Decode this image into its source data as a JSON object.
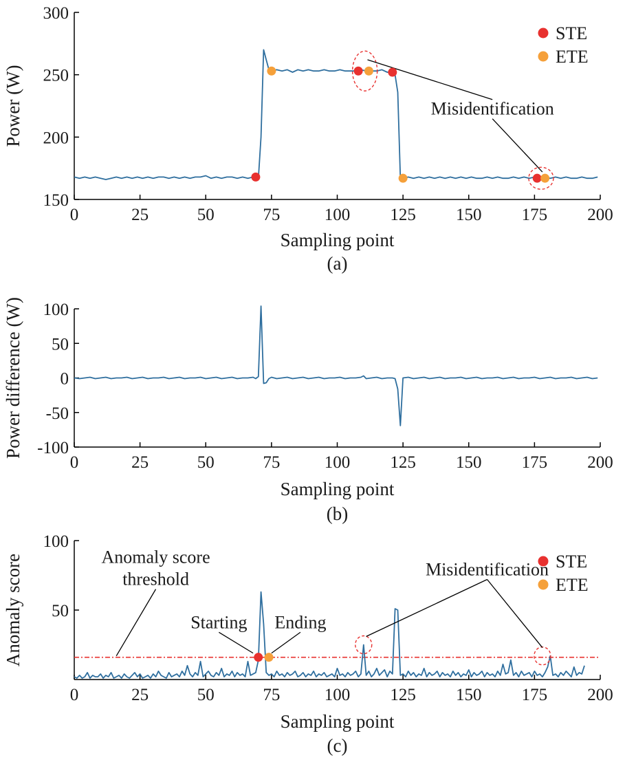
{
  "colors": {
    "line": "#2e6e9e",
    "ste": "#e8312f",
    "ete": "#f5a03a",
    "threshold": "#e8312f",
    "highlight": "#e8312f",
    "axis": "#000000"
  },
  "chart_data": [
    {
      "type": "line",
      "caption": "(a)",
      "xlabel": "Sampling point",
      "ylabel": "Power (W)",
      "xlim": [
        0,
        200
      ],
      "ylim": [
        150,
        300
      ],
      "xticks": [
        0,
        25,
        50,
        75,
        100,
        125,
        150,
        175,
        200
      ],
      "yticks": [
        150,
        200,
        250,
        300
      ],
      "grid": false,
      "legend_position": "top-right",
      "legend": [
        {
          "label": "STE",
          "color": "#e8312f"
        },
        {
          "label": "ETE",
          "color": "#f5a03a"
        }
      ],
      "series": [
        {
          "x": [
            0,
            2,
            4,
            6,
            8,
            10,
            12,
            14,
            16,
            18,
            20,
            22,
            24,
            26,
            28,
            30,
            32,
            34,
            36,
            38,
            40,
            42,
            44,
            46,
            48,
            50,
            52,
            54,
            56,
            58,
            60,
            62,
            64,
            66,
            68,
            69,
            70,
            71,
            72,
            73,
            74,
            75,
            77,
            79,
            81,
            83,
            85,
            87,
            89,
            91,
            93,
            95,
            97,
            99,
            101,
            103,
            105,
            107,
            109,
            111,
            113,
            115,
            117,
            119,
            121,
            122,
            123,
            124,
            125,
            127,
            129,
            131,
            133,
            135,
            137,
            139,
            141,
            143,
            145,
            147,
            149,
            151,
            153,
            155,
            157,
            159,
            161,
            163,
            165,
            167,
            169,
            171,
            173,
            175,
            177,
            179,
            181,
            183,
            185,
            187,
            189,
            191,
            193,
            195,
            197,
            199
          ],
          "y": [
            168,
            167,
            168,
            167,
            168,
            167,
            166,
            167,
            168,
            167,
            168,
            167,
            168,
            167,
            168,
            167,
            168,
            168,
            167,
            168,
            167,
            168,
            167,
            168,
            168,
            169,
            167,
            168,
            167,
            168,
            168,
            167,
            168,
            167,
            168,
            167,
            167,
            200,
            270,
            262,
            254,
            253,
            254,
            253,
            254,
            252,
            254,
            253,
            254,
            253,
            253,
            254,
            253,
            253,
            254,
            253,
            253,
            253,
            254,
            253,
            253,
            253,
            254,
            252,
            252,
            250,
            236,
            167,
            167,
            168,
            167,
            168,
            167,
            168,
            167,
            168,
            167,
            168,
            167,
            168,
            167,
            168,
            167,
            167,
            168,
            167,
            168,
            167,
            167,
            168,
            167,
            168,
            167,
            168,
            167,
            168,
            167,
            168,
            167,
            168,
            167,
            167,
            168,
            167,
            167,
            168
          ]
        }
      ],
      "markers": [
        {
          "type": "STE",
          "x": 69,
          "y": 168
        },
        {
          "type": "ETE",
          "x": 75,
          "y": 253
        },
        {
          "type": "STE",
          "x": 108,
          "y": 253
        },
        {
          "type": "ETE",
          "x": 112,
          "y": 253
        },
        {
          "type": "STE",
          "x": 121,
          "y": 252
        },
        {
          "type": "ETE",
          "x": 125,
          "y": 167
        },
        {
          "type": "STE",
          "x": 176,
          "y": 167
        },
        {
          "type": "ETE",
          "x": 179,
          "y": 167
        }
      ],
      "highlights": [
        {
          "x": 110.5,
          "y": 253
        },
        {
          "x": 177.5,
          "y": 167
        }
      ],
      "annotations": [
        {
          "text": "Misidentification",
          "x": 159,
          "y": 218,
          "targets": [
            {
              "x": 111.5,
              "y": 262
            },
            {
              "x": 178,
              "y": 172
            }
          ]
        }
      ]
    },
    {
      "type": "line",
      "caption": "(b)",
      "xlabel": "Sampling point",
      "ylabel": "Power difference (W)",
      "xlim": [
        0,
        200
      ],
      "ylim": [
        -100,
        100
      ],
      "xticks": [
        0,
        25,
        50,
        75,
        100,
        125,
        150,
        175,
        200
      ],
      "yticks": [
        -100,
        -50,
        0,
        50,
        100
      ],
      "grid": false,
      "series": [
        {
          "x": [
            0,
            2,
            4,
            6,
            8,
            10,
            12,
            14,
            16,
            18,
            20,
            22,
            24,
            26,
            28,
            30,
            32,
            34,
            36,
            38,
            40,
            42,
            44,
            46,
            48,
            50,
            52,
            54,
            56,
            58,
            60,
            62,
            64,
            66,
            68,
            69,
            70,
            71,
            72,
            73,
            74,
            75,
            77,
            79,
            81,
            83,
            85,
            87,
            89,
            91,
            93,
            95,
            97,
            99,
            101,
            103,
            105,
            107,
            109,
            110,
            111,
            113,
            115,
            117,
            119,
            121,
            122,
            123,
            124,
            125,
            127,
            129,
            131,
            133,
            135,
            137,
            139,
            141,
            143,
            145,
            147,
            149,
            151,
            153,
            155,
            157,
            159,
            161,
            163,
            165,
            167,
            169,
            171,
            173,
            175,
            177,
            179,
            181,
            183,
            185,
            187,
            189,
            191,
            193,
            195,
            197,
            199
          ],
          "y": [
            0,
            -1,
            0,
            1,
            -1,
            0,
            1,
            -1,
            0,
            0,
            1,
            -1,
            0,
            1,
            -1,
            0,
            0,
            1,
            -1,
            0,
            1,
            -1,
            0,
            0,
            1,
            -1,
            0,
            1,
            -1,
            0,
            1,
            -1,
            0,
            0,
            1,
            -1,
            2,
            104,
            -8,
            -7,
            -1,
            1,
            -1,
            0,
            1,
            -1,
            0,
            1,
            -1,
            0,
            1,
            -1,
            0,
            0,
            1,
            -1,
            0,
            0,
            1,
            3,
            -1,
            0,
            1,
            -1,
            0,
            0,
            -1,
            -16,
            -69,
            0,
            1,
            -1,
            0,
            1,
            -1,
            0,
            1,
            -1,
            0,
            0,
            1,
            -1,
            0,
            1,
            -1,
            0,
            0,
            1,
            -1,
            0,
            1,
            -1,
            0,
            0,
            1,
            -1,
            0,
            1,
            -1,
            0,
            0,
            1,
            -1,
            0,
            1,
            -1,
            0
          ]
        }
      ]
    },
    {
      "type": "line",
      "caption": "(c)",
      "xlabel": "Sampling point",
      "ylabel": "Anomaly score",
      "xlim": [
        0,
        200
      ],
      "ylim": [
        0,
        100
      ],
      "xticks": [
        0,
        25,
        50,
        75,
        100,
        125,
        150,
        175,
        200
      ],
      "yticks": [
        50,
        100
      ],
      "grid": false,
      "legend_position": "top-right",
      "legend": [
        {
          "label": "STE",
          "color": "#e8312f"
        },
        {
          "label": "ETE",
          "color": "#f5a03a"
        }
      ],
      "threshold": 16,
      "series": [
        {
          "x": [
            0,
            1,
            2,
            3,
            4,
            5,
            6,
            7,
            8,
            9,
            10,
            11,
            12,
            13,
            14,
            15,
            16,
            17,
            18,
            19,
            20,
            21,
            22,
            23,
            24,
            25,
            26,
            27,
            28,
            29,
            30,
            31,
            32,
            33,
            34,
            35,
            36,
            37,
            38,
            39,
            40,
            41,
            42,
            43,
            44,
            45,
            46,
            47,
            48,
            49,
            50,
            51,
            52,
            53,
            54,
            55,
            56,
            57,
            58,
            59,
            60,
            61,
            62,
            63,
            64,
            65,
            66,
            67,
            68,
            69,
            70,
            71,
            72,
            73,
            74,
            75,
            76,
            77,
            78,
            79,
            80,
            81,
            82,
            83,
            84,
            85,
            86,
            87,
            88,
            89,
            90,
            91,
            92,
            93,
            94,
            95,
            96,
            97,
            98,
            99,
            100,
            101,
            102,
            103,
            104,
            105,
            106,
            107,
            108,
            109,
            110,
            111,
            112,
            113,
            114,
            115,
            116,
            117,
            118,
            119,
            120,
            121,
            122,
            123,
            124,
            125,
            126,
            127,
            128,
            129,
            130,
            131,
            132,
            133,
            134,
            135,
            136,
            137,
            138,
            139,
            140,
            141,
            142,
            143,
            144,
            145,
            146,
            147,
            148,
            149,
            150,
            151,
            152,
            153,
            154,
            155,
            156,
            157,
            158,
            159,
            160,
            161,
            162,
            163,
            164,
            165,
            166,
            167,
            168,
            169,
            170,
            171,
            172,
            173,
            174,
            175,
            176,
            177,
            178,
            179,
            180,
            181,
            182,
            183,
            184,
            185,
            186,
            187,
            188,
            189,
            190,
            191,
            192,
            193,
            194
          ],
          "y": [
            2,
            1,
            3,
            1,
            2,
            5,
            1,
            3,
            2,
            2,
            4,
            1,
            3,
            2,
            5,
            1,
            2,
            3,
            1,
            4,
            2,
            1,
            3,
            5,
            2,
            4,
            1,
            2,
            3,
            1,
            4,
            2,
            6,
            3,
            2,
            1,
            5,
            2,
            3,
            4,
            2,
            6,
            3,
            10,
            4,
            2,
            5,
            3,
            13,
            2,
            4,
            6,
            3,
            2,
            5,
            3,
            8,
            2,
            4,
            3,
            6,
            2,
            5,
            3,
            4,
            2,
            13,
            3,
            4,
            5,
            14,
            63,
            40,
            5,
            3,
            4,
            2,
            6,
            3,
            4,
            2,
            5,
            3,
            4,
            6,
            2,
            3,
            5,
            2,
            4,
            3,
            6,
            2,
            4,
            3,
            5,
            2,
            3,
            4,
            2,
            8,
            3,
            4,
            2,
            5,
            3,
            4,
            6,
            2,
            4,
            25,
            3,
            6,
            2,
            4,
            8,
            3,
            5,
            7,
            2,
            6,
            4,
            51,
            50,
            3,
            4,
            2,
            6,
            3,
            5,
            2,
            4,
            3,
            8,
            2,
            5,
            3,
            4,
            6,
            2,
            5,
            3,
            4,
            2,
            6,
            3,
            5,
            2,
            4,
            3,
            7,
            2,
            5,
            3,
            4,
            6,
            2,
            5,
            3,
            4,
            2,
            6,
            3,
            11,
            4,
            5,
            14,
            3,
            5,
            2,
            6,
            3,
            4,
            5,
            2,
            6,
            3,
            4,
            2,
            5,
            9,
            17,
            3,
            4,
            2,
            5,
            3,
            6,
            4,
            2,
            9,
            3,
            5,
            4,
            10
          ]
        }
      ],
      "markers": [
        {
          "type": "STE",
          "x": 70,
          "y": 16
        },
        {
          "type": "ETE",
          "x": 74,
          "y": 16
        }
      ],
      "highlights": [
        {
          "x": 110,
          "y": 25
        },
        {
          "x": 178,
          "y": 17
        }
      ],
      "annotations": [
        {
          "text": "Anomaly score",
          "x": 31,
          "y": 84,
          "targets": []
        },
        {
          "text": "threshold",
          "x": 31,
          "y": 68,
          "targets": [
            {
              "x": 16,
              "y": 17
            }
          ]
        },
        {
          "text": "Misidentification",
          "x": 157,
          "y": 75,
          "targets": [
            {
              "x": 111,
              "y": 31
            },
            {
              "x": 178,
              "y": 23
            }
          ]
        },
        {
          "text": "Starting",
          "x": 55,
          "y": 37,
          "targets": [
            {
              "x": 68,
              "y": 19
            }
          ]
        },
        {
          "text": "Ending",
          "x": 86,
          "y": 37,
          "targets": [
            {
              "x": 75,
              "y": 19
            }
          ]
        }
      ]
    }
  ]
}
